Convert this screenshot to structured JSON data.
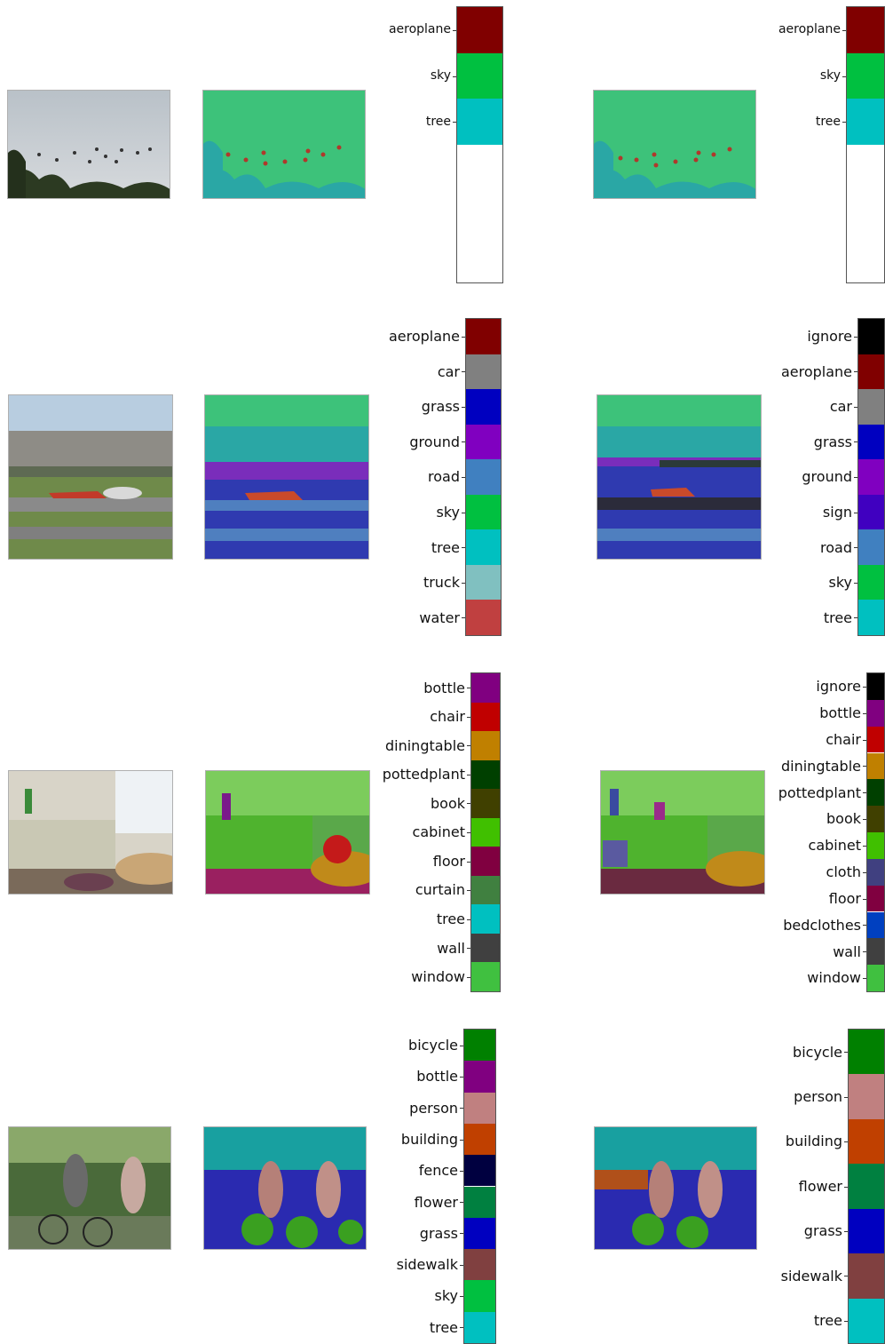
{
  "rows": [
    {
      "pred_legend": {
        "labels": [
          "aeroplane",
          "sky",
          "tree"
        ],
        "colors": [
          "#800000",
          "#00c040",
          "#00c0c0"
        ],
        "empty_fraction": 0.5
      },
      "gt_legend": {
        "labels": [
          "aeroplane",
          "sky",
          "tree"
        ],
        "colors": [
          "#800000",
          "#00c040",
          "#00c0c0"
        ],
        "empty_fraction": 0.5
      }
    },
    {
      "pred_legend": {
        "labels": [
          "aeroplane",
          "car",
          "grass",
          "ground",
          "road",
          "sky",
          "tree",
          "truck",
          "water"
        ],
        "colors": [
          "#800000",
          "#808080",
          "#0000c0",
          "#8000c0",
          "#4080c0",
          "#00c040",
          "#00c0c0",
          "#80c0c0",
          "#c04040"
        ]
      },
      "gt_legend": {
        "labels": [
          "ignore",
          "aeroplane",
          "car",
          "grass",
          "ground",
          "sign",
          "road",
          "sky",
          "tree"
        ],
        "colors": [
          "#000000",
          "#800000",
          "#808080",
          "#0000c0",
          "#8000c0",
          "#4000c0",
          "#4080c0",
          "#00c040",
          "#00c0c0"
        ]
      }
    },
    {
      "pred_legend": {
        "labels": [
          "bottle",
          "chair",
          "diningtable",
          "pottedplant",
          "book",
          "cabinet",
          "floor",
          "curtain",
          "tree",
          "wall",
          "window"
        ],
        "colors": [
          "#800080",
          "#c00000",
          "#c08000",
          "#004000",
          "#404000",
          "#40c000",
          "#800040",
          "#408040",
          "#00c0c0",
          "#404040",
          "#40c040"
        ]
      },
      "gt_legend": {
        "labels": [
          "ignore",
          "bottle",
          "chair",
          "diningtable",
          "pottedplant",
          "book",
          "cabinet",
          "cloth",
          "floor",
          "bedclothes",
          "wall",
          "window"
        ],
        "colors": [
          "#000000",
          "#800080",
          "#c00000",
          "#c08000",
          "#004000",
          "#404000",
          "#40c000",
          "#404080",
          "#800040",
          "#0040c0",
          "#404040",
          "#40c040"
        ]
      }
    },
    {
      "pred_legend": {
        "labels": [
          "bicycle",
          "bottle",
          "person",
          "building",
          "fence",
          "flower",
          "grass",
          "sidewalk",
          "sky",
          "tree"
        ],
        "colors": [
          "#008000",
          "#800080",
          "#c08080",
          "#c04000",
          "#000040",
          "#008040",
          "#0000c0",
          "#804040",
          "#00c040",
          "#00c0c0"
        ]
      },
      "gt_legend": {
        "labels": [
          "bicycle",
          "person",
          "building",
          "flower",
          "grass",
          "sidewalk",
          "tree"
        ],
        "colors": [
          "#008000",
          "#c08080",
          "#c04000",
          "#008040",
          "#0000c0",
          "#804040",
          "#00c0c0"
        ]
      }
    }
  ]
}
